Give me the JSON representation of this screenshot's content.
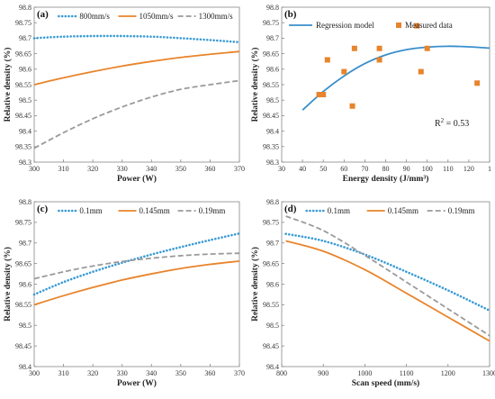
{
  "chart_data": [
    {
      "type": "line",
      "panel_label": "(a)",
      "xlabel": "Power (W)",
      "ylabel": "Relative density (%)",
      "xlim": [
        300,
        370
      ],
      "ylim": [
        98.3,
        98.8
      ],
      "xticks": [
        "300",
        "310",
        "320",
        "330",
        "340",
        "350",
        "360",
        "370"
      ],
      "yticks": [
        "98.3",
        "98.35",
        "98.4",
        "98.45",
        "98.5",
        "98.55",
        "98.6",
        "98.65",
        "98.7",
        "98.75",
        "98.8"
      ],
      "x": [
        300,
        310,
        320,
        330,
        340,
        350,
        360,
        370
      ],
      "series": [
        {
          "name": "800mm/s",
          "style": "dotted",
          "color": "#3a9bd5",
          "values": [
            98.7,
            98.705,
            98.707,
            98.707,
            98.705,
            98.7,
            98.694,
            98.687
          ]
        },
        {
          "name": "1050mm/s",
          "style": "solid",
          "color": "#e8842b",
          "values": [
            98.55,
            98.572,
            98.592,
            98.61,
            98.625,
            98.638,
            98.648,
            98.657
          ]
        },
        {
          "name": "1300mm/s",
          "style": "dashed",
          "color": "#9a9a9a",
          "values": [
            98.345,
            98.395,
            98.44,
            98.478,
            98.51,
            98.535,
            98.55,
            98.563
          ]
        }
      ],
      "legend": "top"
    },
    {
      "type": "scatter",
      "panel_label": "(b)",
      "xlabel": "Energy density (J/mm³)",
      "ylabel": "Relative density (%)",
      "xlim": [
        30,
        130
      ],
      "ylim": [
        98.3,
        98.8
      ],
      "xticks": [
        "30",
        "40",
        "50",
        "60",
        "70",
        "80",
        "90",
        "100",
        "110",
        "120",
        "1"
      ],
      "yticks": [
        "98.3",
        "98.35",
        "98.4",
        "98.45",
        "98.5",
        "98.55",
        "98.6",
        "98.65",
        "98.7",
        "98.75",
        "98.8"
      ],
      "regression": {
        "name": "Regression model",
        "color": "#3a8fcc",
        "x": [
          40,
          50,
          60,
          70,
          80,
          90,
          100,
          110,
          120,
          130
        ],
        "values": [
          98.468,
          98.528,
          98.578,
          98.618,
          98.646,
          98.663,
          98.671,
          98.674,
          98.672,
          98.668
        ]
      },
      "measured": {
        "name": "Measured data",
        "color": "#e8842b",
        "points": [
          [
            48,
            98.518
          ],
          [
            50,
            98.518
          ],
          [
            52,
            98.63
          ],
          [
            60,
            98.592
          ],
          [
            64,
            98.481
          ],
          [
            65,
            98.667
          ],
          [
            77,
            98.667
          ],
          [
            77,
            98.63
          ],
          [
            95,
            98.74
          ],
          [
            97,
            98.592
          ],
          [
            100,
            98.667
          ],
          [
            124,
            98.555
          ]
        ]
      },
      "annotation": "R",
      "annotation_sup": "2",
      "annotation_rest": " = 0.53",
      "legend": "top"
    },
    {
      "type": "line",
      "panel_label": "(c)",
      "xlabel": "Power (W)",
      "ylabel": "Relative density (%)",
      "xlim": [
        300,
        370
      ],
      "ylim": [
        98.4,
        98.8
      ],
      "xticks": [
        "300",
        "310",
        "320",
        "330",
        "340",
        "350",
        "360",
        "370"
      ],
      "yticks": [
        "98.4",
        "98.45",
        "98.5",
        "98.55",
        "98.6",
        "98.65",
        "98.7",
        "98.75",
        "98.8"
      ],
      "x": [
        300,
        310,
        320,
        330,
        340,
        350,
        360,
        370
      ],
      "series": [
        {
          "name": "0.1mm",
          "style": "dotted",
          "color": "#3a9bd5",
          "values": [
            98.575,
            98.605,
            98.63,
            98.652,
            98.672,
            98.69,
            98.707,
            98.723
          ]
        },
        {
          "name": "0.145mm",
          "style": "solid",
          "color": "#e8842b",
          "values": [
            98.55,
            98.572,
            98.592,
            98.61,
            98.625,
            98.638,
            98.648,
            98.656
          ]
        },
        {
          "name": "0.19mm",
          "style": "dashed",
          "color": "#9a9a9a",
          "values": [
            98.613,
            98.63,
            98.644,
            98.655,
            98.663,
            98.669,
            98.673,
            98.675
          ]
        }
      ],
      "legend": "top"
    },
    {
      "type": "line",
      "panel_label": "(d)",
      "xlabel": "Scan speed (mm/s)",
      "ylabel": "Relative density (%)",
      "xlim": [
        800,
        1300
      ],
      "ylim": [
        98.4,
        98.8
      ],
      "xticks": [
        "800",
        "900",
        "1000",
        "1100",
        "1200",
        "1300"
      ],
      "yticks": [
        "98.4",
        "98.45",
        "98.5",
        "98.55",
        "98.6",
        "98.65",
        "98.7",
        "98.75",
        "98.8"
      ],
      "x": [
        810,
        900,
        1000,
        1100,
        1200,
        1300
      ],
      "series": [
        {
          "name": "0.1mm",
          "style": "dotted",
          "color": "#3a9bd5",
          "values": [
            98.722,
            98.705,
            98.672,
            98.63,
            98.585,
            98.536
          ]
        },
        {
          "name": "0.145mm",
          "style": "solid",
          "color": "#e8842b",
          "values": [
            98.705,
            98.68,
            98.635,
            98.578,
            98.52,
            98.462
          ]
        },
        {
          "name": "0.19mm",
          "style": "dashed",
          "color": "#9a9a9a",
          "values": [
            98.765,
            98.73,
            98.67,
            98.605,
            98.54,
            98.475
          ]
        }
      ],
      "legend": "top"
    }
  ]
}
